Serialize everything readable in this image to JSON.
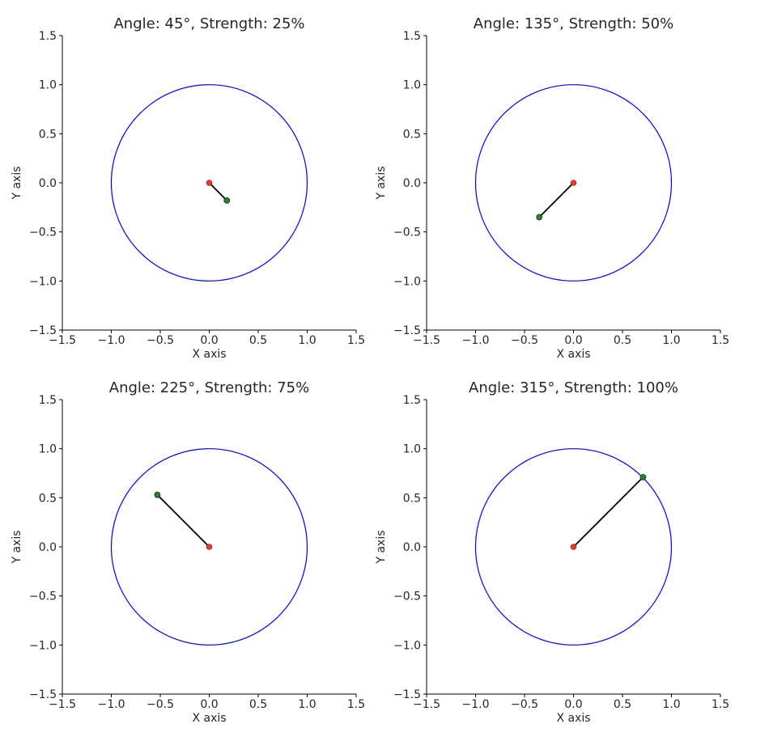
{
  "chart_data": [
    {
      "type": "scatter",
      "title": "Angle: 45°, Strength: 25%",
      "xlabel": "X axis",
      "ylabel": "Y axis",
      "xlim": [
        -1.5,
        1.5
      ],
      "ylim": [
        -1.5,
        1.5
      ],
      "xticks": [
        "−1.5",
        "−1.0",
        "−0.5",
        "0.0",
        "0.5",
        "1.0",
        "1.5"
      ],
      "yticks": [
        "−1.5",
        "−1.0",
        "−0.5",
        "0.0",
        "0.5",
        "1.0",
        "1.5"
      ],
      "grid": false,
      "circle": {
        "center": [
          0,
          0
        ],
        "radius": 1.0,
        "color": "#0000ff"
      },
      "origin": {
        "x": 0,
        "y": 0,
        "color": "#e8392b"
      },
      "point": {
        "x": 0.18,
        "y": -0.18,
        "color": "#2e7d32"
      },
      "line_color": "#000000"
    },
    {
      "type": "scatter",
      "title": "Angle: 135°, Strength: 50%",
      "xlabel": "X axis",
      "ylabel": "Y axis",
      "xlim": [
        -1.5,
        1.5
      ],
      "ylim": [
        -1.5,
        1.5
      ],
      "xticks": [
        "−1.5",
        "−1.0",
        "−0.5",
        "0.0",
        "0.5",
        "1.0",
        "1.5"
      ],
      "yticks": [
        "−1.5",
        "−1.0",
        "−0.5",
        "0.0",
        "0.5",
        "1.0",
        "1.5"
      ],
      "grid": false,
      "circle": {
        "center": [
          0,
          0
        ],
        "radius": 1.0,
        "color": "#0000ff"
      },
      "origin": {
        "x": 0,
        "y": 0,
        "color": "#e8392b"
      },
      "point": {
        "x": -0.35,
        "y": -0.35,
        "color": "#2e7d32"
      },
      "line_color": "#000000"
    },
    {
      "type": "scatter",
      "title": "Angle: 225°, Strength: 75%",
      "xlabel": "X axis",
      "ylabel": "Y axis",
      "xlim": [
        -1.5,
        1.5
      ],
      "ylim": [
        -1.5,
        1.5
      ],
      "xticks": [
        "−1.5",
        "−1.0",
        "−0.5",
        "0.0",
        "0.5",
        "1.0",
        "1.5"
      ],
      "yticks": [
        "−1.5",
        "−1.0",
        "−0.5",
        "0.0",
        "0.5",
        "1.0",
        "1.5"
      ],
      "grid": false,
      "circle": {
        "center": [
          0,
          0
        ],
        "radius": 1.0,
        "color": "#0000ff"
      },
      "origin": {
        "x": 0,
        "y": 0,
        "color": "#e8392b"
      },
      "point": {
        "x": -0.53,
        "y": 0.53,
        "color": "#2e7d32"
      },
      "line_color": "#000000"
    },
    {
      "type": "scatter",
      "title": "Angle: 315°, Strength: 100%",
      "xlabel": "X axis",
      "ylabel": "Y axis",
      "xlim": [
        -1.5,
        1.5
      ],
      "ylim": [
        -1.5,
        1.5
      ],
      "xticks": [
        "−1.5",
        "−1.0",
        "−0.5",
        "0.0",
        "0.5",
        "1.0",
        "1.5"
      ],
      "yticks": [
        "−1.5",
        "−1.0",
        "−0.5",
        "0.0",
        "0.5",
        "1.0",
        "1.5"
      ],
      "grid": false,
      "circle": {
        "center": [
          0,
          0
        ],
        "radius": 1.0,
        "color": "#0000ff"
      },
      "origin": {
        "x": 0,
        "y": 0,
        "color": "#e8392b"
      },
      "point": {
        "x": 0.71,
        "y": 0.71,
        "color": "#2e7d32"
      },
      "line_color": "#000000"
    }
  ]
}
